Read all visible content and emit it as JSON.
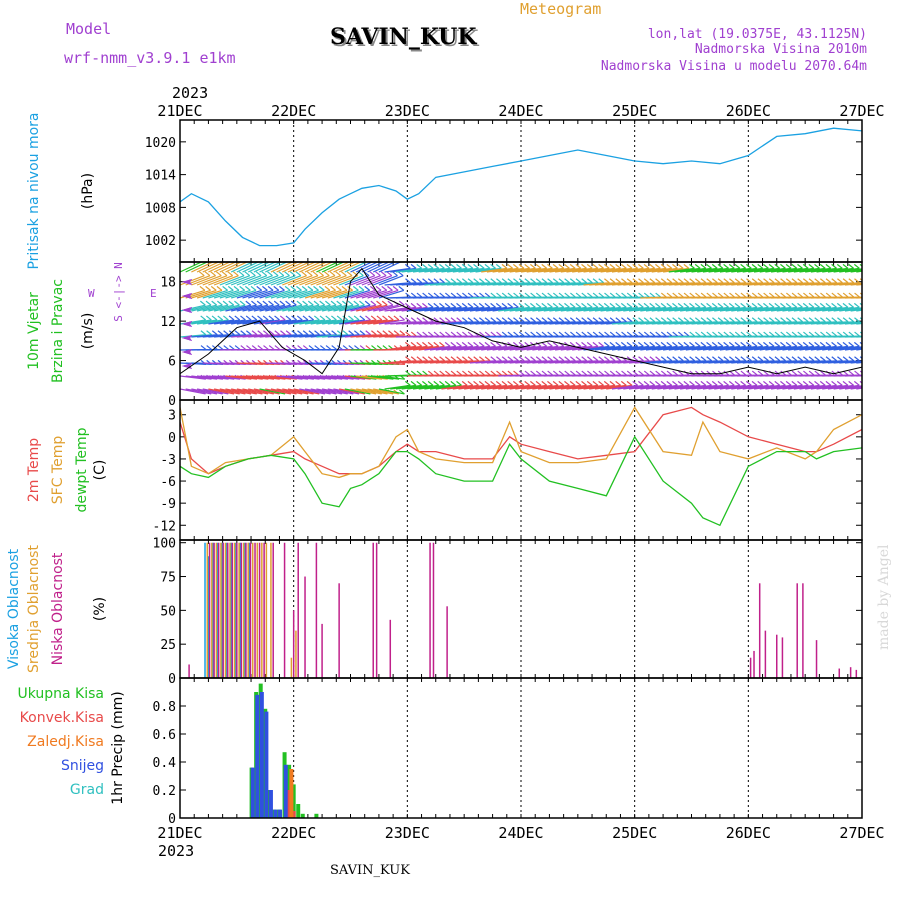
{
  "header": {
    "model_label": "Model",
    "model_name": "wrf-nmm_v3.9.1 e1km",
    "station": "SAVIN_KUK",
    "product": "Meteogram",
    "lonlat": "lon,lat (19.0375E, 43.1125N)",
    "elevation": "Nadmorska Visina 2010m",
    "model_elevation": "Nadmorska Visina u modelu 2070.64m",
    "year_top": "2023",
    "year_bottom": "2023",
    "footer_station": "SAVIN_KUK",
    "credit": "made by Angel"
  },
  "colors": {
    "pressure": "#1ba1e2",
    "wind_label": "#21c021",
    "wind_dir": "#a040d0",
    "temp2m": "#e84a4a",
    "sfc": "#e0a030",
    "dewpt": "#22c022",
    "high_cloud": "#1ba1e2",
    "mid_cloud": "#e0a030",
    "low_cloud": "#c0208a",
    "total_precip": "#22c022",
    "conv_precip": "#e84a4a",
    "frz_precip": "#f07a20",
    "snow": "#3050e0",
    "hail": "#30c0c0",
    "credit": "#d8d8d8"
  },
  "chart_data": [
    {
      "type": "line",
      "title": "",
      "ylabel": [
        "Pritisak na nivou mora",
        "(hPa)"
      ],
      "ylim": [
        998,
        1024
      ],
      "yticks": [
        1002,
        1008,
        1014,
        1020
      ],
      "x_unit": "days since 21 DEC 2023 00 UTC",
      "categories": [
        "21DEC",
        "22DEC",
        "23DEC",
        "24DEC",
        "25DEC",
        "26DEC",
        "27DEC"
      ],
      "series": [
        {
          "name": "Pritisak na nivou mora",
          "x": [
            0,
            0.1,
            0.25,
            0.4,
            0.55,
            0.7,
            0.85,
            1.0,
            1.1,
            1.25,
            1.4,
            1.5,
            1.6,
            1.75,
            1.9,
            2.0,
            2.1,
            2.25,
            2.5,
            2.75,
            3.0,
            3.25,
            3.5,
            3.75,
            4.0,
            4.25,
            4.5,
            4.75,
            5.0,
            5.25,
            5.5,
            5.75,
            6.0
          ],
          "y": [
            1009,
            1010.5,
            1009,
            1005.5,
            1002.5,
            1001,
            1001,
            1001.5,
            1004,
            1007,
            1009.5,
            1010.5,
            1011.5,
            1012,
            1011,
            1009.5,
            1010.5,
            1013.5,
            1014.5,
            1015.5,
            1016.5,
            1017.5,
            1018.5,
            1017.5,
            1016.5,
            1016,
            1016.5,
            1016,
            1017.5,
            1021,
            1021.5,
            1022.5,
            1022
          ]
        }
      ]
    },
    {
      "type": "line",
      "title": "",
      "ylabel": [
        "10m Vjetar",
        "Brzina i Pravac",
        "(m/s)"
      ],
      "direction_key": {
        "w": "W",
        "e": "E",
        "n": "N",
        "s": "S",
        "left": "<",
        "right": ">"
      },
      "ylim": [
        0,
        21
      ],
      "yticks": [
        0,
        6,
        12,
        18
      ],
      "x_unit": "days since 21 DEC 2023 00 UTC",
      "series": [
        {
          "name": "wind speed",
          "x": [
            0,
            0.25,
            0.5,
            0.7,
            0.9,
            1.1,
            1.25,
            1.4,
            1.5,
            1.6,
            1.75,
            2.0,
            2.25,
            2.5,
            2.75,
            3.0,
            3.25,
            3.5,
            3.75,
            4.0,
            4.25,
            4.5,
            4.75,
            5.0,
            5.25,
            5.5,
            5.75,
            6.0
          ],
          "y": [
            4,
            7,
            11,
            12,
            8,
            6,
            4,
            8,
            18,
            20,
            16,
            14,
            12,
            11,
            9,
            8,
            9,
            8,
            7,
            6,
            5,
            4,
            4,
            5,
            4,
            5,
            4,
            5
          ]
        }
      ]
    },
    {
      "type": "line",
      "title": "",
      "ylabel": [
        "2m Temp",
        "SFC Temp",
        "dewpt Temp",
        "(C)"
      ],
      "ylim": [
        -14,
        5
      ],
      "yticks": [
        -12,
        -9,
        -6,
        -3,
        0,
        3
      ],
      "x_unit": "days since 21 DEC 2023 00 UTC",
      "series": [
        {
          "name": "2m Temp",
          "x": [
            0,
            0.1,
            0.25,
            0.4,
            0.6,
            0.8,
            1.0,
            1.1,
            1.25,
            1.4,
            1.5,
            1.6,
            1.75,
            1.9,
            2.0,
            2.1,
            2.25,
            2.5,
            2.75,
            2.9,
            3.0,
            3.25,
            3.5,
            3.75,
            4.0,
            4.25,
            4.5,
            4.6,
            4.75,
            5.0,
            5.25,
            5.5,
            5.6,
            5.75,
            6.0
          ],
          "y": [
            2,
            -3,
            -5,
            -4,
            -3,
            -2.5,
            -2,
            -3,
            -4,
            -5,
            -5,
            -5,
            -4,
            -2,
            -1,
            -2,
            -2,
            -3,
            -3,
            0,
            -1,
            -2,
            -3,
            -2.5,
            -2,
            3,
            4,
            3,
            2,
            0,
            -1,
            -2,
            -2,
            -1,
            1
          ]
        },
        {
          "name": "SFC Temp",
          "x": [
            0,
            0.1,
            0.25,
            0.4,
            0.6,
            0.8,
            1.0,
            1.1,
            1.25,
            1.4,
            1.5,
            1.6,
            1.75,
            1.9,
            2.0,
            2.1,
            2.25,
            2.5,
            2.75,
            2.9,
            3.0,
            3.25,
            3.5,
            3.75,
            4.0,
            4.25,
            4.5,
            4.6,
            4.75,
            5.0,
            5.25,
            5.5,
            5.6,
            5.75,
            6.0
          ],
          "y": [
            4,
            -4,
            -5,
            -3.5,
            -3,
            -2.5,
            0,
            -2,
            -5,
            -5.5,
            -5,
            -5,
            -4,
            0,
            1,
            -2,
            -3,
            -3.5,
            -3.5,
            2,
            -2,
            -3.5,
            -3.5,
            -3,
            4,
            -2,
            -2.5,
            2,
            -2,
            -3,
            -1.5,
            -3,
            -2,
            1,
            3
          ]
        },
        {
          "name": "dewpt Temp",
          "x": [
            0,
            0.1,
            0.25,
            0.4,
            0.6,
            0.8,
            1.0,
            1.1,
            1.25,
            1.4,
            1.5,
            1.6,
            1.75,
            1.9,
            2.0,
            2.1,
            2.25,
            2.5,
            2.75,
            2.9,
            3.0,
            3.25,
            3.5,
            3.75,
            4.0,
            4.25,
            4.5,
            4.6,
            4.75,
            5.0,
            5.25,
            5.5,
            5.6,
            5.75,
            6.0
          ],
          "y": [
            -4,
            -5,
            -5.5,
            -4,
            -3,
            -2.5,
            -3,
            -5,
            -9,
            -9.5,
            -7,
            -6.5,
            -5,
            -2,
            -2,
            -3,
            -5,
            -6,
            -6,
            -1,
            -3,
            -6,
            -7,
            -8,
            0,
            -6,
            -9,
            -11,
            -12,
            -4,
            -2,
            -2,
            -3,
            -2,
            -1.5
          ]
        }
      ]
    },
    {
      "type": "bar",
      "title": "",
      "ylabel": [
        "Visoka Oblacnost",
        "Srednja Oblacnost",
        "Niska Oblacnost",
        "(%)"
      ],
      "ylim": [
        0,
        102
      ],
      "yticks": [
        0,
        25,
        50,
        75,
        100
      ],
      "x_unit": "days since 21 DEC 2023 00 UTC",
      "series": [
        {
          "name": "Visoka Oblacnost",
          "x": [
            0.22,
            0.25,
            0.29,
            0.33,
            0.37,
            0.41,
            0.45,
            0.49,
            0.53,
            0.57,
            0.61
          ],
          "values": [
            100,
            90,
            100,
            100,
            100,
            100,
            100,
            100,
            100,
            100,
            100
          ]
        },
        {
          "name": "Srednja Oblacnost",
          "x": [
            0.24,
            0.28,
            0.32,
            0.36,
            0.4,
            0.44,
            0.48,
            0.52,
            0.56,
            0.6,
            0.64,
            0.68,
            0.72,
            0.76,
            0.8,
            0.98,
            1.02
          ],
          "values": [
            100,
            100,
            100,
            100,
            100,
            100,
            100,
            100,
            100,
            100,
            100,
            100,
            100,
            100,
            100,
            15,
            35
          ]
        },
        {
          "name": "Niska Oblacnost",
          "x": [
            0.08,
            0.26,
            0.3,
            0.34,
            0.38,
            0.42,
            0.46,
            0.5,
            0.54,
            0.58,
            0.62,
            0.66,
            0.7,
            0.74,
            0.82,
            0.92,
            1.0,
            1.04,
            1.1,
            1.2,
            1.25,
            1.4,
            1.7,
            1.73,
            1.85,
            2.2,
            2.23,
            2.35,
            5.02,
            5.05,
            5.1,
            5.15,
            5.25,
            5.3,
            5.43,
            5.48,
            5.6,
            5.8,
            5.9,
            5.95
          ],
          "values": [
            10,
            100,
            100,
            100,
            100,
            100,
            100,
            100,
            100,
            100,
            100,
            100,
            100,
            100,
            100,
            100,
            50,
            100,
            75,
            100,
            40,
            70,
            100,
            100,
            43,
            100,
            100,
            53,
            15,
            20,
            70,
            35,
            32,
            30,
            70,
            70,
            28,
            7,
            8,
            6
          ]
        }
      ]
    },
    {
      "type": "bar",
      "title": "",
      "ylabel": [
        "1hr Precip",
        "(mm)"
      ],
      "legend": [
        "Ukupna Kisa",
        "Konvek.Kisa",
        "Zaledj.Kisa",
        "Snijeg",
        "Grad"
      ],
      "ylim": [
        0,
        1.0
      ],
      "yticks": [
        0,
        0.2,
        0.4,
        0.6,
        0.8
      ],
      "x_unit": "days since 21 DEC 2023 00 UTC",
      "series": [
        {
          "name": "Ukupna Kisa",
          "x": [
            0.63,
            0.67,
            0.71,
            0.75,
            0.79,
            0.83,
            0.87,
            0.92,
            0.96,
            1.0,
            1.04,
            1.08,
            1.2
          ],
          "values": [
            0.36,
            0.9,
            0.96,
            0.78,
            0.2,
            0.06,
            0.06,
            0.47,
            0.38,
            0.24,
            0.1,
            0.03,
            0.03
          ]
        },
        {
          "name": "Konvek.Kisa",
          "x": [
            0.95,
            1.0
          ],
          "values": [
            0.2,
            0.05
          ]
        },
        {
          "name": "Zaledj.Kisa",
          "x": [
            0.98
          ],
          "values": [
            0.35
          ]
        },
        {
          "name": "Snijeg",
          "x": [
            0.64,
            0.68,
            0.72,
            0.76,
            0.8,
            0.84,
            0.88,
            0.93
          ],
          "values": [
            0.36,
            0.88,
            0.9,
            0.76,
            0.2,
            0.06,
            0.06,
            0.38
          ]
        },
        {
          "name": "Grad",
          "x": [],
          "values": []
        }
      ]
    }
  ]
}
